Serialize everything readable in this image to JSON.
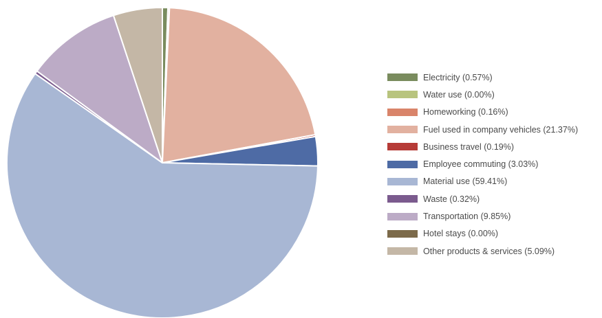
{
  "chart_data": {
    "type": "pie",
    "start_angle_deg": 0,
    "direction": "clockwise",
    "slices": [
      {
        "label": "Electricity (0.57%)",
        "value": 0.57,
        "color": "#7a8c5e"
      },
      {
        "label": "Water use (0.00%)",
        "value": 0.0,
        "color": "#b8c47e"
      },
      {
        "label": "Homeworking (0.16%)",
        "value": 0.16,
        "color": "#d9846a"
      },
      {
        "label": "Fuel used in company vehicles (21.37%)",
        "value": 21.37,
        "color": "#e2b1a0"
      },
      {
        "label": "Business travel (0.19%)",
        "value": 0.19,
        "color": "#b63b37"
      },
      {
        "label": "Employee commuting (3.03%)",
        "value": 3.03,
        "color": "#4e6ba5"
      },
      {
        "label": "Material use (59.41%)",
        "value": 59.41,
        "color": "#a8b7d4"
      },
      {
        "label": "Waste (0.32%)",
        "value": 0.32,
        "color": "#7b5b8e"
      },
      {
        "label": "Transportation (9.85%)",
        "value": 9.85,
        "color": "#bcabc6"
      },
      {
        "label": "Hotel stays (0.00%)",
        "value": 0.0,
        "color": "#7c6a4a"
      },
      {
        "label": "Other products & services (5.09%)",
        "value": 5.09,
        "color": "#c4b7a6"
      }
    ],
    "legend_position": "right"
  }
}
